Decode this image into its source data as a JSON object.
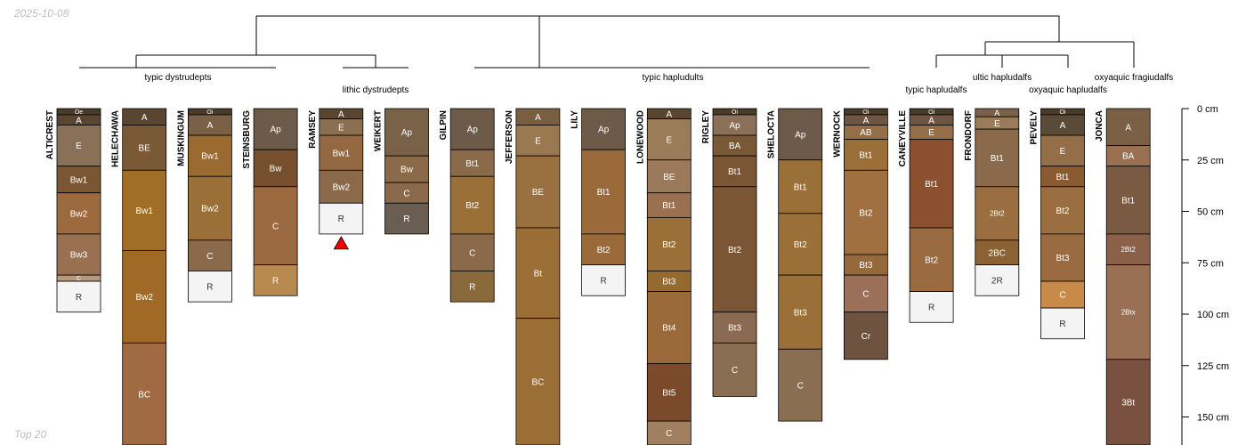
{
  "date_stamp": "2025-10-08",
  "footer_note": "Top 20",
  "depth_axis": {
    "unit": "cm",
    "max_depth": 165,
    "ticks": [
      0,
      25,
      50,
      75,
      100,
      125,
      150
    ],
    "tick_labels": [
      "0 cm",
      "25 cm",
      "50 cm",
      "75 cm",
      "100 cm",
      "125 cm",
      "150 cm"
    ]
  },
  "dendrogram": {
    "groups": [
      {
        "label": "typic dystrudepts",
        "profiles": [
          0,
          3
        ]
      },
      {
        "label": "lithic dystrudepts",
        "profiles": [
          4,
          5
        ]
      },
      {
        "label": "typic hapludults",
        "profiles": [
          6,
          12
        ]
      },
      {
        "label": "typic hapludalfs",
        "profiles": [
          13,
          13
        ]
      },
      {
        "label": "ultic hapludalfs",
        "profiles": [
          14,
          14
        ]
      },
      {
        "label": "oxyaquic hapludalfs",
        "profiles": [
          15,
          15
        ]
      },
      {
        "label": "oxyaquic fragiudalfs",
        "profiles": [
          16,
          16
        ]
      }
    ]
  },
  "profiles": [
    {
      "name": "ALTICREST",
      "horizons": [
        {
          "name": "Oe",
          "top": 0,
          "bottom": 3,
          "color": "#4a3a2a"
        },
        {
          "name": "A",
          "top": 3,
          "bottom": 8,
          "color": "#5a4532"
        },
        {
          "name": "E",
          "top": 8,
          "bottom": 28,
          "color": "#8a7057"
        },
        {
          "name": "Bw1",
          "top": 28,
          "bottom": 41,
          "color": "#7a5633"
        },
        {
          "name": "Bw2",
          "top": 41,
          "bottom": 61,
          "color": "#9c6a3e"
        },
        {
          "name": "Bw3",
          "top": 61,
          "bottom": 81,
          "color": "#9a7052"
        },
        {
          "name": "C",
          "top": 81,
          "bottom": 84,
          "color": "#b59a80"
        },
        {
          "name": "R",
          "top": 84,
          "bottom": 99,
          "color": "#f4f4f4"
        }
      ]
    },
    {
      "name": "HELECHAWA",
      "horizons": [
        {
          "name": "A",
          "top": 0,
          "bottom": 8,
          "color": "#5a4530"
        },
        {
          "name": "BE",
          "top": 8,
          "bottom": 30,
          "color": "#7a5a36"
        },
        {
          "name": "Bw1",
          "top": 30,
          "bottom": 69,
          "color": "#a06e26"
        },
        {
          "name": "Bw2",
          "top": 69,
          "bottom": 114,
          "color": "#a06a26"
        },
        {
          "name": "BC",
          "top": 114,
          "bottom": 165,
          "color": "#a06a42"
        }
      ]
    },
    {
      "name": "MUSKINGUM",
      "horizons": [
        {
          "name": "Oi",
          "top": 0,
          "bottom": 3,
          "color": "#4a3a28"
        },
        {
          "name": "A",
          "top": 3,
          "bottom": 13,
          "color": "#7a6046"
        },
        {
          "name": "Bw1",
          "top": 13,
          "bottom": 33,
          "color": "#9a6a30"
        },
        {
          "name": "Bw2",
          "top": 33,
          "bottom": 64,
          "color": "#9a7038"
        },
        {
          "name": "C",
          "top": 64,
          "bottom": 79,
          "color": "#8a6a4a"
        },
        {
          "name": "R",
          "top": 79,
          "bottom": 94,
          "color": "#f4f4f4"
        }
      ]
    },
    {
      "name": "STEINSBURG",
      "horizons": [
        {
          "name": "Ap",
          "top": 0,
          "bottom": 20,
          "color": "#6e5a48"
        },
        {
          "name": "Bw",
          "top": 20,
          "bottom": 38,
          "color": "#76502e"
        },
        {
          "name": "C",
          "top": 38,
          "bottom": 76,
          "color": "#9c6a40"
        },
        {
          "name": "R",
          "top": 76,
          "bottom": 91,
          "color": "#b88a50"
        }
      ]
    },
    {
      "name": "RAMSEY",
      "horizons": [
        {
          "name": "A",
          "top": 0,
          "bottom": 5,
          "color": "#5a4530"
        },
        {
          "name": "E",
          "top": 5,
          "bottom": 13,
          "color": "#8a7050"
        },
        {
          "name": "Bw1",
          "top": 13,
          "bottom": 30,
          "color": "#946840"
        },
        {
          "name": "Bw2",
          "top": 30,
          "bottom": 46,
          "color": "#8a6a4a"
        },
        {
          "name": "R",
          "top": 46,
          "bottom": 61,
          "color": "#f4f4f4"
        }
      ]
    },
    {
      "name": "WEIKERT",
      "horizons": [
        {
          "name": "Ap",
          "top": 0,
          "bottom": 23,
          "color": "#7a6248"
        },
        {
          "name": "Bw",
          "top": 23,
          "bottom": 36,
          "color": "#8a6a48"
        },
        {
          "name": "C",
          "top": 36,
          "bottom": 46,
          "color": "#8a6a4a"
        },
        {
          "name": "R",
          "top": 46,
          "bottom": 61,
          "color": "#6a5e52"
        }
      ]
    },
    {
      "name": "GILPIN",
      "horizons": [
        {
          "name": "Ap",
          "top": 0,
          "bottom": 20,
          "color": "#6e5a48"
        },
        {
          "name": "Bt1",
          "top": 20,
          "bottom": 33,
          "color": "#8a6a48"
        },
        {
          "name": "Bt2",
          "top": 33,
          "bottom": 61,
          "color": "#9a7038"
        },
        {
          "name": "C",
          "top": 61,
          "bottom": 79,
          "color": "#8a6a4a"
        },
        {
          "name": "R",
          "top": 79,
          "bottom": 94,
          "color": "#8a6a3a"
        }
      ]
    },
    {
      "name": "JEFFERSON",
      "horizons": [
        {
          "name": "A",
          "top": 0,
          "bottom": 8,
          "color": "#7a5e40"
        },
        {
          "name": "E",
          "top": 8,
          "bottom": 23,
          "color": "#9a7850"
        },
        {
          "name": "BE",
          "top": 23,
          "bottom": 58,
          "color": "#9a7040"
        },
        {
          "name": "Bt",
          "top": 58,
          "bottom": 102,
          "color": "#9a6e34"
        },
        {
          "name": "BC",
          "top": 102,
          "bottom": 165,
          "color": "#9a6e34"
        }
      ]
    },
    {
      "name": "LILY",
      "horizons": [
        {
          "name": "Ap",
          "top": 0,
          "bottom": 20,
          "color": "#6e5a48"
        },
        {
          "name": "Bt1",
          "top": 20,
          "bottom": 61,
          "color": "#9a6a3a"
        },
        {
          "name": "Bt2",
          "top": 61,
          "bottom": 76,
          "color": "#9a6a3a"
        },
        {
          "name": "R",
          "top": 76,
          "bottom": 91,
          "color": "#f4f4f4"
        }
      ]
    },
    {
      "name": "LONEWOOD",
      "horizons": [
        {
          "name": "A",
          "top": 0,
          "bottom": 5,
          "color": "#5a4530"
        },
        {
          "name": "E",
          "top": 5,
          "bottom": 25,
          "color": "#9a7c5a"
        },
        {
          "name": "BE",
          "top": 25,
          "bottom": 41,
          "color": "#9a7a5a"
        },
        {
          "name": "Bt1",
          "top": 41,
          "bottom": 53,
          "color": "#9a7050"
        },
        {
          "name": "Bt2",
          "top": 53,
          "bottom": 79,
          "color": "#9a7038"
        },
        {
          "name": "Bt3",
          "top": 79,
          "bottom": 89,
          "color": "#946a30"
        },
        {
          "name": "Bt4",
          "top": 89,
          "bottom": 124,
          "color": "#9a6a3a"
        },
        {
          "name": "Bt5",
          "top": 124,
          "bottom": 152,
          "color": "#7a4a2a"
        },
        {
          "name": "C",
          "top": 152,
          "bottom": 165,
          "color": "#a08060"
        }
      ]
    },
    {
      "name": "RIGLEY",
      "horizons": [
        {
          "name": "Oi",
          "top": 0,
          "bottom": 3,
          "color": "#4a3a28"
        },
        {
          "name": "Ap",
          "top": 3,
          "bottom": 13,
          "color": "#8a7058"
        },
        {
          "name": "BA",
          "top": 13,
          "bottom": 23,
          "color": "#7a5a36"
        },
        {
          "name": "Bt1",
          "top": 23,
          "bottom": 38,
          "color": "#7a5636"
        },
        {
          "name": "Bt2",
          "top": 38,
          "bottom": 99,
          "color": "#7a5636"
        },
        {
          "name": "Bt3",
          "top": 99,
          "bottom": 114,
          "color": "#8a6a50"
        },
        {
          "name": "C",
          "top": 114,
          "bottom": 140,
          "color": "#8a6e52"
        }
      ]
    },
    {
      "name": "SHELOCTA",
      "horizons": [
        {
          "name": "Ap",
          "top": 0,
          "bottom": 25,
          "color": "#6e5a48"
        },
        {
          "name": "Bt1",
          "top": 25,
          "bottom": 51,
          "color": "#9a7038"
        },
        {
          "name": "Bt2",
          "top": 51,
          "bottom": 81,
          "color": "#9a7038"
        },
        {
          "name": "Bt3",
          "top": 81,
          "bottom": 117,
          "color": "#9a7038"
        },
        {
          "name": "C",
          "top": 117,
          "bottom": 152,
          "color": "#8a6e52"
        }
      ]
    },
    {
      "name": "WERNOCK",
      "horizons": [
        {
          "name": "Oi",
          "top": 0,
          "bottom": 3,
          "color": "#4a3a28"
        },
        {
          "name": "A",
          "top": 3,
          "bottom": 8,
          "color": "#6e5644"
        },
        {
          "name": "AB",
          "top": 8,
          "bottom": 15,
          "color": "#946e48"
        },
        {
          "name": "Bt1",
          "top": 15,
          "bottom": 30,
          "color": "#9a7038"
        },
        {
          "name": "Bt2",
          "top": 30,
          "bottom": 71,
          "color": "#a07040"
        },
        {
          "name": "Bt3",
          "top": 71,
          "bottom": 81,
          "color": "#946a3a"
        },
        {
          "name": "C",
          "top": 81,
          "bottom": 99,
          "color": "#9a7058"
        },
        {
          "name": "Cr",
          "top": 99,
          "bottom": 122,
          "color": "#6e5440"
        }
      ]
    },
    {
      "name": "CANEYVILLE",
      "horizons": [
        {
          "name": "Oi",
          "top": 0,
          "bottom": 3,
          "color": "#4a3a28"
        },
        {
          "name": "A",
          "top": 3,
          "bottom": 8,
          "color": "#6e5644"
        },
        {
          "name": "E",
          "top": 8,
          "bottom": 15,
          "color": "#946e48"
        },
        {
          "name": "Bt1",
          "top": 15,
          "bottom": 58,
          "color": "#8a5030"
        },
        {
          "name": "Bt2",
          "top": 58,
          "bottom": 89,
          "color": "#9a6a40"
        },
        {
          "name": "R",
          "top": 89,
          "bottom": 104,
          "color": "#f4f4f4"
        }
      ]
    },
    {
      "name": "FRONDORF",
      "horizons": [
        {
          "name": "A",
          "top": 0,
          "bottom": 4,
          "color": "#7a6048"
        },
        {
          "name": "E",
          "top": 4,
          "bottom": 10,
          "color": "#9a7c5a"
        },
        {
          "name": "Bt1",
          "top": 10,
          "bottom": 38,
          "color": "#8a6a4a"
        },
        {
          "name": "2Bt2",
          "top": 38,
          "bottom": 64,
          "color": "#9a6e40"
        },
        {
          "name": "2BC",
          "top": 64,
          "bottom": 76,
          "color": "#8a6234"
        },
        {
          "name": "2R",
          "top": 76,
          "bottom": 91,
          "color": "#f4f4f4"
        }
      ]
    },
    {
      "name": "PEVELY",
      "horizons": [
        {
          "name": "Oi",
          "top": 0,
          "bottom": 3,
          "color": "#4a3a28"
        },
        {
          "name": "A",
          "top": 3,
          "bottom": 13,
          "color": "#5a4a38"
        },
        {
          "name": "E",
          "top": 13,
          "bottom": 28,
          "color": "#946e48"
        },
        {
          "name": "Bt1",
          "top": 28,
          "bottom": 38,
          "color": "#8a5a30"
        },
        {
          "name": "Bt2",
          "top": 38,
          "bottom": 61,
          "color": "#9a6e40"
        },
        {
          "name": "Bt3",
          "top": 61,
          "bottom": 84,
          "color": "#9a6a40"
        },
        {
          "name": "C",
          "top": 84,
          "bottom": 97,
          "color": "#c88a48"
        },
        {
          "name": "R",
          "top": 97,
          "bottom": 112,
          "color": "#f4f4f4"
        }
      ]
    },
    {
      "name": "JONCA",
      "horizons": [
        {
          "name": "A",
          "top": 0,
          "bottom": 18,
          "color": "#7a6044"
        },
        {
          "name": "BA",
          "top": 18,
          "bottom": 28,
          "color": "#9a7052"
        },
        {
          "name": "Bt1",
          "top": 28,
          "bottom": 61,
          "color": "#7a5a42"
        },
        {
          "name": "2Bt2",
          "top": 61,
          "bottom": 76,
          "color": "#8a6048"
        },
        {
          "name": "2Btx",
          "top": 76,
          "bottom": 122,
          "color": "#9a7054"
        },
        {
          "name": "3Bt",
          "top": 122,
          "bottom": 165,
          "color": "#7a5040"
        }
      ]
    }
  ],
  "marker": {
    "profile": 4,
    "depth": 61,
    "color": "#ee0000"
  },
  "colors": {
    "outline": "#000000",
    "label_light": "#ffffff",
    "label_dark": "#333333",
    "tree": "#000000"
  }
}
